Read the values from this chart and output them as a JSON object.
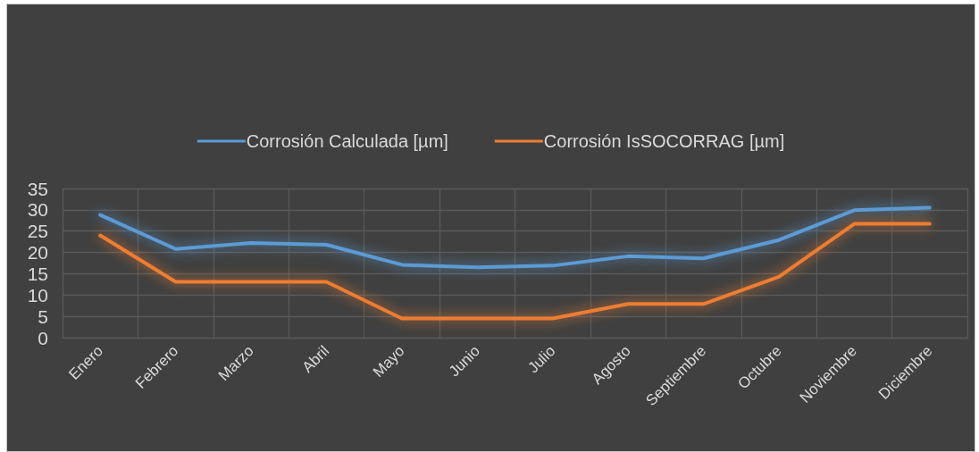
{
  "chart_data": {
    "type": "line",
    "categories": [
      "Enero",
      "Febrero",
      "Marzo",
      "Abril",
      "Mayo",
      "Junio",
      "Julio",
      "Agosto",
      "Septiembre",
      "Octubre",
      "Noviembre",
      "Diciembre"
    ],
    "series": [
      {
        "name": "Corrosión Calculada [µm]",
        "color": "#5b9bd5",
        "values": [
          28.8,
          20.8,
          22.2,
          21.8,
          17.1,
          16.5,
          16.9,
          19.1,
          18.6,
          22.9,
          29.9,
          30.5
        ]
      },
      {
        "name": "Corrosión IsSOCORRAG [µm]",
        "color": "#ed7d31",
        "values": [
          24.0,
          13.1,
          13.1,
          13.1,
          4.5,
          4.5,
          4.5,
          7.9,
          7.9,
          14.3,
          26.7,
          26.7
        ]
      }
    ],
    "ylim": [
      0,
      35
    ],
    "yticks": [
      0,
      5,
      10,
      15,
      20,
      25,
      30,
      35
    ],
    "grid": true,
    "legend": "top",
    "marker": "none"
  }
}
